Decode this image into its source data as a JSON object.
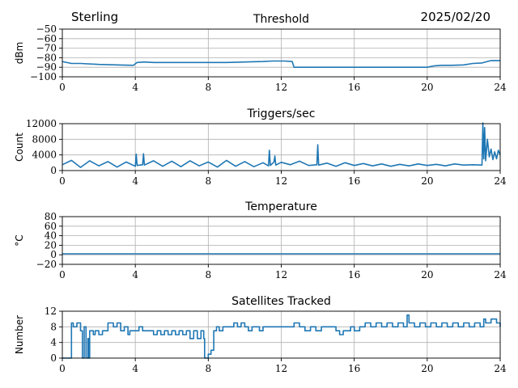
{
  "header": {
    "left": "Sterling",
    "right": "2025/02/20"
  },
  "chart_data": [
    {
      "type": "line",
      "title": "Threshold",
      "ylabel": "dBm",
      "xlim": [
        0,
        24
      ],
      "ylim": [
        -100,
        -50
      ],
      "xticks": [
        0,
        4,
        8,
        12,
        16,
        20,
        24
      ],
      "yticks": [
        -100,
        -90,
        -80,
        -70,
        -60,
        -50
      ],
      "ytick_labels": [
        "−100",
        "−90",
        "−80",
        "−70",
        "−60",
        "−50"
      ],
      "grid": true,
      "color": "#1f77b4",
      "x": [
        0,
        0.5,
        1,
        2,
        3,
        3.9,
        4.1,
        4.5,
        5,
        6,
        7,
        8,
        9,
        10,
        11,
        11.5,
        12.2,
        12.6,
        12.7,
        13,
        14,
        15,
        16,
        17,
        18,
        19,
        20,
        20.4,
        20.8,
        21.3,
        22,
        22.5,
        23,
        23.5,
        24
      ],
      "values": [
        -84,
        -86,
        -86,
        -87,
        -87.5,
        -88,
        -85,
        -84.5,
        -85,
        -85,
        -85,
        -85,
        -85,
        -84.5,
        -84,
        -83.5,
        -83.5,
        -84,
        -90,
        -90,
        -90,
        -90,
        -90,
        -90,
        -90,
        -90,
        -90,
        -88.5,
        -88,
        -88,
        -87.5,
        -86,
        -85.5,
        -83,
        -83
      ]
    },
    {
      "type": "line",
      "title": "Triggers/sec",
      "ylabel": "Count",
      "xlim": [
        0,
        24
      ],
      "ylim": [
        0,
        12000
      ],
      "xticks": [
        0,
        4,
        8,
        12,
        16,
        20,
        24
      ],
      "yticks": [
        0,
        4000,
        8000,
        12000
      ],
      "ytick_labels": [
        "0",
        "4000",
        "8000",
        "12000"
      ],
      "grid": true,
      "color": "#1f77b4",
      "x": [
        0,
        0.5,
        1,
        1.5,
        2,
        2.5,
        3,
        3.5,
        4,
        4.05,
        4.1,
        4.4,
        4.45,
        4.5,
        5,
        5.5,
        6,
        6.5,
        7,
        7.5,
        8,
        8.5,
        9,
        9.5,
        10,
        10.5,
        11,
        11.3,
        11.35,
        11.4,
        11.6,
        11.65,
        11.7,
        12,
        12.5,
        13,
        13.5,
        13.95,
        14,
        14.05,
        14.5,
        15,
        15.5,
        16,
        16.5,
        17,
        17.5,
        18,
        18.5,
        19,
        19.5,
        20,
        20.5,
        21,
        21.5,
        22,
        22.5,
        23,
        23.05,
        23.1,
        23.15,
        23.2,
        23.3,
        23.4,
        23.5,
        23.6,
        23.7,
        23.8,
        23.9,
        24
      ],
      "values": [
        1500,
        2600,
        800,
        2500,
        1200,
        2300,
        900,
        2200,
        1100,
        4200,
        1300,
        1500,
        4300,
        1400,
        2500,
        1100,
        2400,
        1000,
        2500,
        1200,
        2200,
        900,
        2600,
        1100,
        2300,
        1000,
        2000,
        1200,
        5200,
        1300,
        2200,
        3700,
        1400,
        2100,
        1500,
        2400,
        1300,
        1500,
        6600,
        1400,
        1900,
        1100,
        2000,
        1300,
        1800,
        1200,
        1700,
        1100,
        1600,
        1200,
        1700,
        1300,
        1600,
        1200,
        1700,
        1400,
        1500,
        1400,
        12200,
        3000,
        11000,
        2500,
        8000,
        3500,
        5500,
        2800,
        4800,
        3000,
        5200,
        4000
      ]
    },
    {
      "type": "line",
      "title": "Temperature",
      "ylabel": "°C",
      "xlim": [
        0,
        24
      ],
      "ylim": [
        -20,
        80
      ],
      "xticks": [
        0,
        4,
        8,
        12,
        16,
        20,
        24
      ],
      "yticks": [
        -20,
        0,
        20,
        40,
        60,
        80
      ],
      "ytick_labels": [
        "−20",
        "0",
        "20",
        "40",
        "60",
        "80"
      ],
      "grid": true,
      "color": "#1f77b4",
      "x": [
        0,
        24
      ],
      "values": [
        2,
        2
      ]
    },
    {
      "type": "line",
      "title": "Satellites Tracked",
      "ylabel": "Number",
      "xlim": [
        0,
        24
      ],
      "ylim": [
        0,
        12
      ],
      "xticks": [
        0,
        4,
        8,
        12,
        16,
        20,
        24
      ],
      "yticks": [
        0,
        4,
        8,
        12
      ],
      "ytick_labels": [
        "0",
        "4",
        "8",
        "12"
      ],
      "grid": true,
      "color": "#1f77b4",
      "step": true,
      "x": [
        0,
        0.5,
        0.6,
        0.8,
        1.0,
        1.1,
        1.2,
        1.3,
        1.4,
        1.45,
        1.5,
        1.7,
        1.8,
        2.0,
        2.2,
        2.5,
        2.8,
        3.0,
        3.2,
        3.4,
        3.6,
        3.7,
        3.8,
        4.0,
        4.2,
        4.4,
        4.6,
        4.8,
        5.0,
        5.2,
        5.4,
        5.6,
        5.8,
        6.0,
        6.2,
        6.4,
        6.6,
        6.8,
        7.0,
        7.2,
        7.4,
        7.6,
        7.75,
        7.8,
        8.0,
        8.15,
        8.3,
        8.45,
        8.6,
        8.8,
        9.0,
        9.2,
        9.4,
        9.6,
        9.8,
        10.0,
        10.2,
        10.4,
        10.6,
        10.8,
        11.0,
        11.3,
        11.6,
        12.0,
        12.3,
        12.7,
        13.0,
        13.3,
        13.6,
        13.9,
        14.2,
        14.5,
        14.8,
        15.0,
        15.2,
        15.4,
        15.6,
        15.8,
        16.0,
        16.3,
        16.6,
        16.9,
        17.2,
        17.5,
        17.8,
        18.1,
        18.4,
        18.7,
        18.9,
        19.0,
        19.3,
        19.6,
        19.9,
        20.2,
        20.5,
        20.8,
        21.1,
        21.4,
        21.7,
        22.0,
        22.3,
        22.6,
        22.9,
        23.1,
        23.2,
        23.5,
        23.8,
        24
      ],
      "values": [
        0,
        9,
        8,
        9,
        7,
        0,
        8,
        0,
        5,
        0,
        7,
        6,
        7,
        6,
        7,
        9,
        8,
        9,
        7,
        8,
        6,
        7,
        7,
        7,
        8,
        7,
        7,
        7,
        6,
        7,
        6,
        7,
        6,
        7,
        6,
        7,
        6,
        7,
        5,
        7,
        5,
        7,
        5,
        0,
        1,
        2,
        7,
        8,
        7,
        8,
        8,
        8,
        9,
        8,
        9,
        8,
        7,
        8,
        8,
        7,
        8,
        8,
        8,
        8,
        8,
        9,
        8,
        7,
        8,
        7,
        8,
        8,
        8,
        7,
        6,
        7,
        7,
        8,
        7,
        8,
        9,
        8,
        9,
        8,
        9,
        8,
        9,
        8,
        11,
        9,
        8,
        9,
        8,
        9,
        8,
        9,
        8,
        9,
        8,
        9,
        8,
        9,
        8,
        10,
        9,
        10,
        9,
        8
      ]
    }
  ]
}
